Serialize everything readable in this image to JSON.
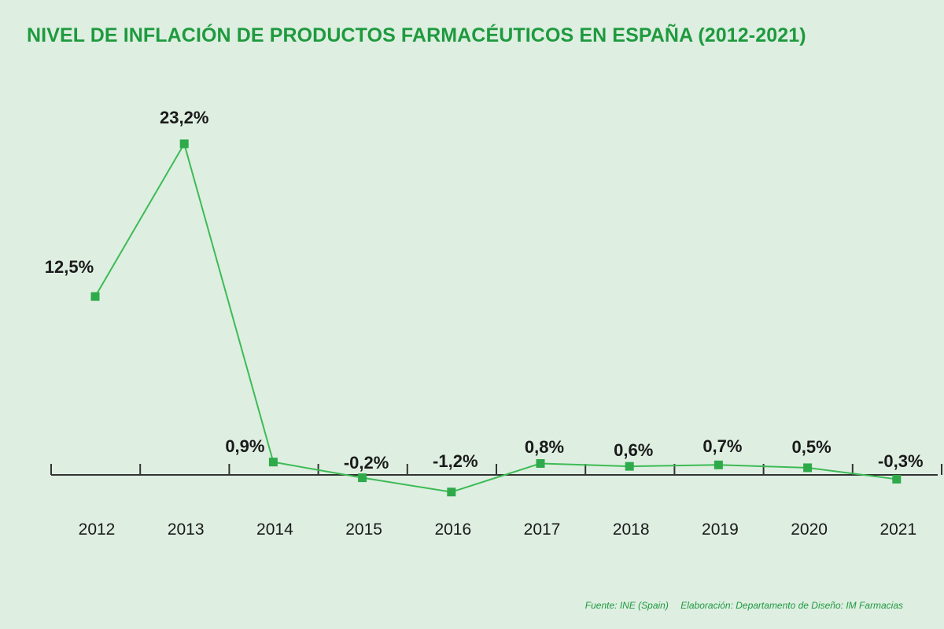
{
  "chart_data": {
    "type": "line",
    "title": "NIVEL DE INFLACIÓN DE PRODUCTOS FARMACÉUTICOS EN ESPAÑA (2012-2021)",
    "xlabel": "",
    "ylabel": "",
    "categories": [
      "2012",
      "2013",
      "2014",
      "2015",
      "2016",
      "2017",
      "2018",
      "2019",
      "2020",
      "2021"
    ],
    "series": [
      {
        "values": [
          12.5,
          23.2,
          0.9,
          -0.2,
          -1.2,
          0.8,
          0.6,
          0.7,
          0.5,
          -0.3
        ],
        "labels": [
          "12,5%",
          "23,2%",
          "0,9%",
          "-0,2%",
          "-1,2%",
          "0,8%",
          "0,6%",
          "0,7%",
          "0,5%",
          "-0,3%"
        ],
        "color": "#2eaa4a"
      }
    ],
    "grid": false,
    "legend": "none"
  },
  "source": {
    "fuente": "Fuente: INE (Spain)",
    "elaboracion": "Elaboración: Departamento de Diseño: IM Farmacias"
  },
  "colors": {
    "title": "#1e9a3e",
    "line": "#3dbb55",
    "marker": "#2eaa4a",
    "axis": "#333333",
    "background": "#deeee1"
  }
}
